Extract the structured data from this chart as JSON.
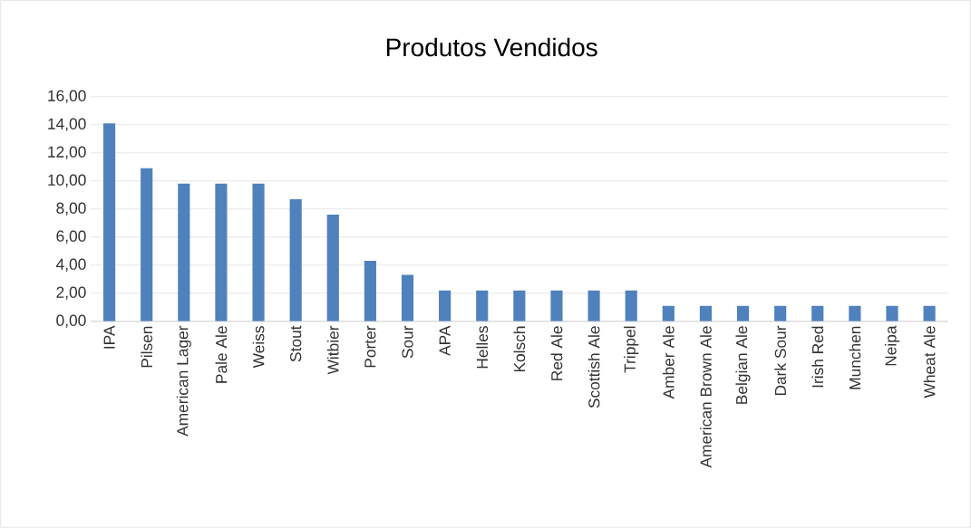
{
  "chart_data": {
    "type": "bar",
    "title": "Produtos Vendidos",
    "categories": [
      "IPA",
      "Pilsen",
      "American Lager",
      "Pale Ale",
      "Weiss",
      "Stout",
      "Witbier",
      "Porter",
      "Sour",
      "APA",
      "Helles",
      "Kolsch",
      "Red Ale",
      "Scottish Ale",
      "Trippel",
      "Amber Ale",
      "American Brown Ale",
      "Belgian Ale",
      "Dark Sour",
      "Irish Red",
      "Munchen",
      "Neipa",
      "Wheat Ale"
    ],
    "values": [
      14.1,
      10.9,
      9.8,
      9.8,
      9.8,
      8.7,
      7.6,
      4.3,
      3.3,
      2.2,
      2.2,
      2.2,
      2.2,
      2.2,
      2.2,
      1.1,
      1.1,
      1.1,
      1.1,
      1.1,
      1.1,
      1.1,
      1.1
    ],
    "color": "#4f81bd",
    "ylim": [
      0,
      16
    ],
    "yticks": [
      {
        "value": 0,
        "label": "0,00"
      },
      {
        "value": 2,
        "label": "2,00"
      },
      {
        "value": 4,
        "label": "4,00"
      },
      {
        "value": 6,
        "label": "6,00"
      },
      {
        "value": 8,
        "label": "8,00"
      },
      {
        "value": 10,
        "label": "10,00"
      },
      {
        "value": 12,
        "label": "12,00"
      },
      {
        "value": 14,
        "label": "14,00"
      },
      {
        "value": 16,
        "label": "16,00"
      }
    ],
    "grid": "y"
  }
}
